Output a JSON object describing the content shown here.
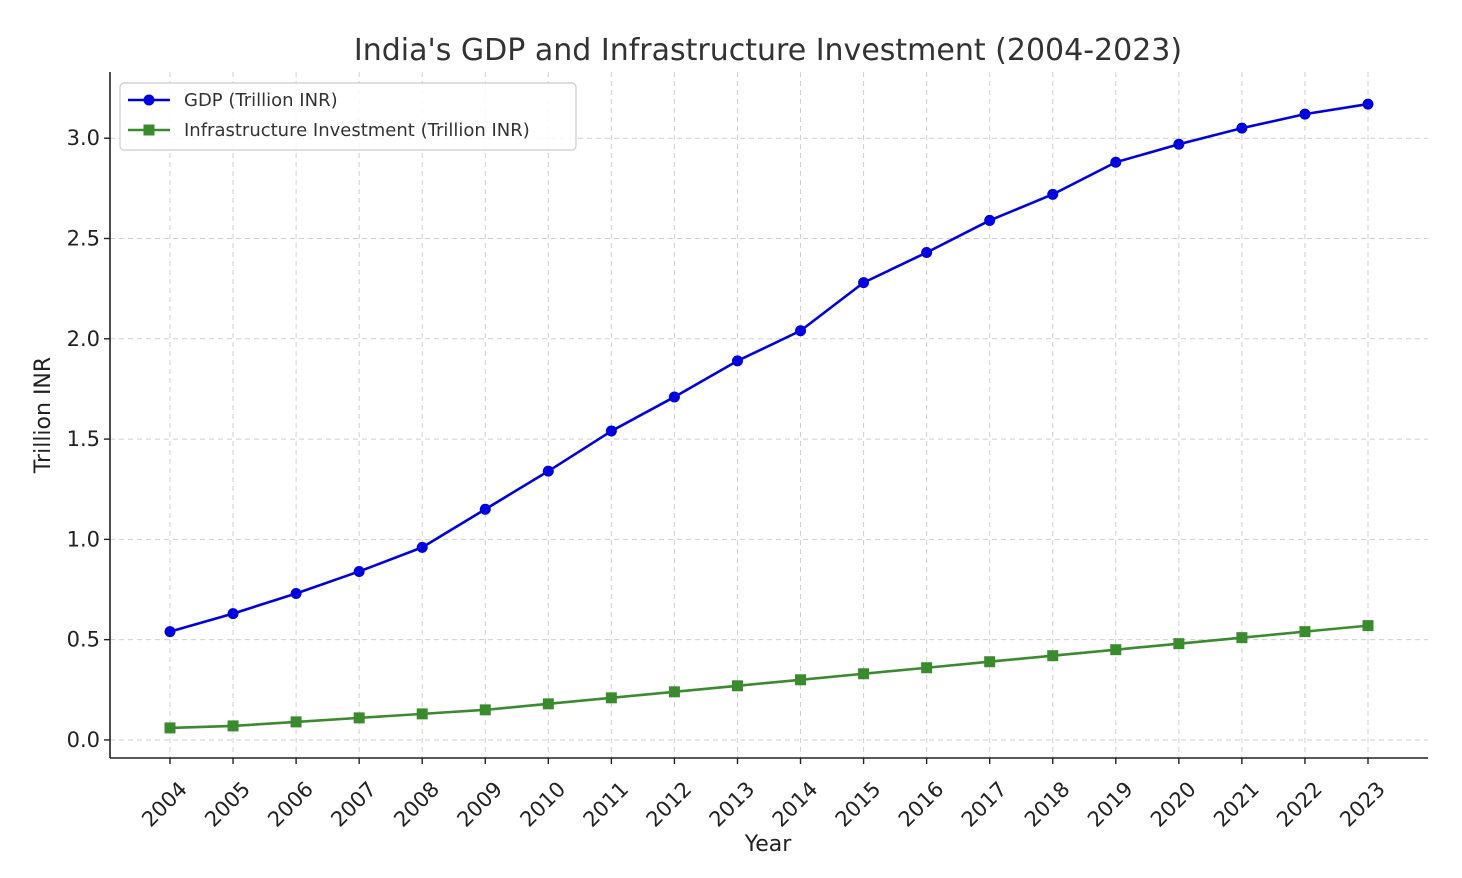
{
  "chart_data": {
    "type": "line",
    "title": "India's GDP and Infrastructure Investment (2004-2023)",
    "xlabel": "Year",
    "ylabel": "Trillion INR",
    "x": [
      "2004",
      "2005",
      "2006",
      "2007",
      "2008",
      "2009",
      "2010",
      "2011",
      "2012",
      "2013",
      "2014",
      "2015",
      "2016",
      "2017",
      "2018",
      "2019",
      "2020",
      "2021",
      "2022",
      "2023"
    ],
    "yticks": [
      "0.0",
      "0.5",
      "1.0",
      "1.5",
      "2.0",
      "2.5",
      "3.0"
    ],
    "ylim": [
      -0.09,
      3.33
    ],
    "grid": true,
    "legend_position": "top-left",
    "series": [
      {
        "name": "GDP (Trillion INR)",
        "color": "#0000dd",
        "marker": "circle",
        "values": [
          0.54,
          0.63,
          0.73,
          0.84,
          0.96,
          1.15,
          1.34,
          1.54,
          1.71,
          1.89,
          2.04,
          2.28,
          2.43,
          2.59,
          2.72,
          2.88,
          2.97,
          3.05,
          3.12,
          3.17
        ]
      },
      {
        "name": "Infrastructure Investment (Trillion INR)",
        "color": "#3a8a2e",
        "marker": "square",
        "values": [
          0.06,
          0.07,
          0.09,
          0.11,
          0.13,
          0.15,
          0.18,
          0.21,
          0.24,
          0.27,
          0.3,
          0.33,
          0.36,
          0.39,
          0.42,
          0.45,
          0.48,
          0.51,
          0.54,
          0.57
        ]
      }
    ]
  }
}
